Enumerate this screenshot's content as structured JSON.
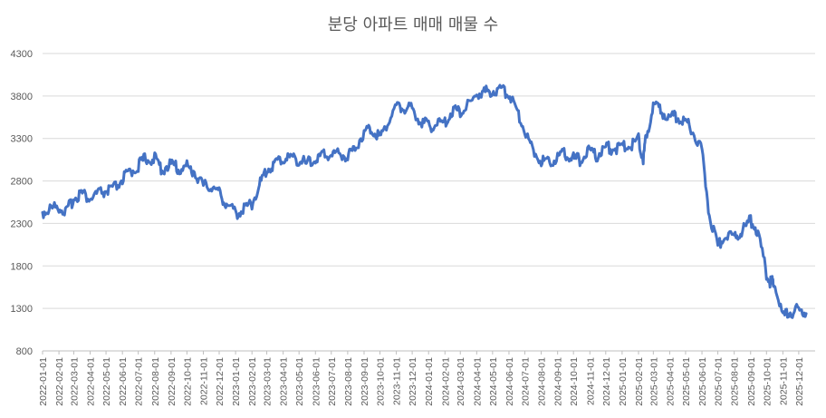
{
  "chart_data": {
    "type": "line",
    "title": "분당 아파트 매매 매물 수",
    "xlabel": "",
    "ylabel": "",
    "ylim": [
      800,
      4300
    ],
    "yticks": [
      800,
      1300,
      1800,
      2300,
      2800,
      3300,
      3800,
      4300
    ],
    "grid": true,
    "legend": "none",
    "colors": {
      "series": "#4472c4",
      "grid": "#d9d9d9",
      "text": "#595959"
    },
    "xticks": [
      "2022-01-01",
      "2022-02-01",
      "2022-03-01",
      "2022-04-01",
      "2022-05-01",
      "2022-06-01",
      "2022-07-01",
      "2022-08-01",
      "2022-09-01",
      "2022-10-01",
      "2022-11-01",
      "2022-12-01",
      "2023-01-01",
      "2023-02-01",
      "2023-03-01",
      "2023-04-01",
      "2023-05-01",
      "2023-06-01",
      "2023-07-01",
      "2023-08-01",
      "2023-09-01",
      "2023-10-01",
      "2023-11-01",
      "2023-12-01",
      "2024-01-01",
      "2024-02-01",
      "2024-03-01",
      "2024-04-01",
      "2024-05-01",
      "2024-06-01",
      "2024-07-01",
      "2024-08-01",
      "2024-09-01",
      "2024-10-01",
      "2024-11-01",
      "2024-12-01",
      "2025-01-01",
      "2025-02-01",
      "2025-03-01",
      "2025-04-01",
      "2025-05-01",
      "2025-06-01",
      "2025-07-01",
      "2025-08-01",
      "2025-09-01",
      "2025-10-01",
      "2025-11-01",
      "2025-12-01"
    ],
    "series": [
      {
        "x": [
          "2022-01-01",
          "2022-01-15",
          "2022-02-01",
          "2022-02-15",
          "2022-03-01",
          "2022-03-15",
          "2022-04-01",
          "2022-04-15",
          "2022-05-01",
          "2022-05-15",
          "2022-06-01",
          "2022-06-15",
          "2022-07-01",
          "2022-07-15",
          "2022-08-01",
          "2022-08-15",
          "2022-09-01",
          "2022-09-15",
          "2022-10-01",
          "2022-10-15",
          "2022-11-01",
          "2022-11-15",
          "2022-12-01",
          "2022-12-15",
          "2023-01-01",
          "2023-01-15",
          "2023-02-01",
          "2023-02-15",
          "2023-03-01",
          "2023-03-15",
          "2023-04-01",
          "2023-04-15",
          "2023-05-01",
          "2023-05-15",
          "2023-06-01",
          "2023-06-15",
          "2023-07-01",
          "2023-07-15",
          "2023-08-01",
          "2023-08-15",
          "2023-09-01",
          "2023-09-15",
          "2023-10-01",
          "2023-10-15",
          "2023-11-01",
          "2023-11-15",
          "2023-12-01",
          "2023-12-15",
          "2024-01-01",
          "2024-01-15",
          "2024-02-01",
          "2024-02-15",
          "2024-03-01",
          "2024-03-15",
          "2024-04-01",
          "2024-04-15",
          "2024-05-01",
          "2024-05-15",
          "2024-06-01",
          "2024-06-15",
          "2024-07-01",
          "2024-07-15",
          "2024-08-01",
          "2024-08-15",
          "2024-09-01",
          "2024-09-15",
          "2024-10-01",
          "2024-10-15",
          "2024-11-01",
          "2024-11-15",
          "2024-12-01",
          "2024-12-15",
          "2025-01-01",
          "2025-01-15",
          "2025-02-01",
          "2025-02-10",
          "2025-02-15",
          "2025-03-01",
          "2025-03-15",
          "2025-04-01",
          "2025-04-15",
          "2025-05-01",
          "2025-05-15",
          "2025-06-01",
          "2025-06-15",
          "2025-07-01",
          "2025-07-15",
          "2025-08-01",
          "2025-08-15",
          "2025-09-01",
          "2025-09-15",
          "2025-10-01",
          "2025-10-10",
          "2025-10-15",
          "2025-11-01",
          "2025-11-15",
          "2025-12-01",
          "2025-12-15"
        ],
        "values": [
          2430,
          2470,
          2500,
          2430,
          2600,
          2660,
          2590,
          2650,
          2680,
          2700,
          2820,
          2900,
          2980,
          3070,
          3060,
          2940,
          3000,
          2940,
          2970,
          2910,
          2740,
          2740,
          2660,
          2530,
          2420,
          2460,
          2540,
          2750,
          2930,
          3000,
          3060,
          3080,
          3050,
          3000,
          3050,
          3100,
          3120,
          3130,
          3090,
          3190,
          3380,
          3420,
          3320,
          3480,
          3680,
          3660,
          3650,
          3520,
          3440,
          3470,
          3480,
          3630,
          3620,
          3680,
          3820,
          3840,
          3860,
          3870,
          3840,
          3650,
          3400,
          3180,
          3050,
          3020,
          3090,
          3120,
          3060,
          3050,
          3150,
          3100,
          3200,
          3180,
          3200,
          3210,
          3300,
          3050,
          3310,
          3680,
          3620,
          3560,
          3550,
          3490,
          3400,
          3150,
          2400,
          2040,
          2150,
          2160,
          2200,
          2340,
          2200,
          1700,
          1590,
          1630,
          1200,
          1260,
          1280,
          1240
        ]
      }
    ]
  }
}
